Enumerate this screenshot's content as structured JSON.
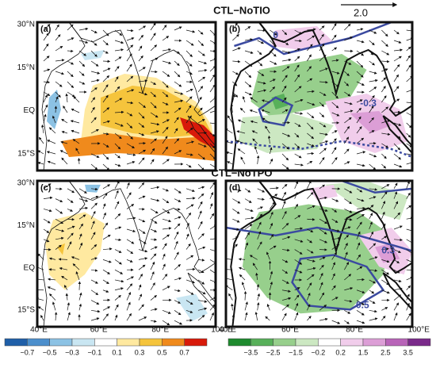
{
  "panel_titles": [
    "CTL−NoTIO",
    "CTL−NoTPO"
  ],
  "reference_vector": "2.0",
  "panels": [
    {
      "label": "(a)"
    },
    {
      "label": "(b)",
      "contour_labels": [
        "0",
        "-0.3"
      ]
    },
    {
      "label": "(c)"
    },
    {
      "label": "(d)",
      "contour_labels": [
        "0.3",
        "0.5"
      ]
    }
  ],
  "y_axis_labels": [
    "30°N",
    "15°N",
    "EQ",
    "15°S"
  ],
  "x_axis_labels": [
    "40°E",
    "60°E",
    "80°E",
    "100°E"
  ],
  "colorbars": [
    {
      "colors": [
        "#1f5fa8",
        "#4c8fcc",
        "#8cc2e4",
        "#c9e6f2",
        "#ffffff",
        "#ffe9a0",
        "#f5c43c",
        "#f08a1c",
        "#d81a0a"
      ],
      "labels": [
        "−0.7",
        "−0.5",
        "−0.3",
        "−0.1",
        "0.1",
        "0.3",
        "0.5",
        "0.7"
      ]
    },
    {
      "colors": [
        "#1e8a2e",
        "#58b05a",
        "#97cf8c",
        "#cce8c2",
        "#ffffff",
        "#f1cdeb",
        "#dc9ed6",
        "#b864b8",
        "#7a2a8a"
      ],
      "labels": [
        "−3.5",
        "−2.5",
        "−1.5",
        "−0.2",
        "0.2",
        "1.5",
        "2.5",
        "3.5"
      ]
    }
  ]
}
